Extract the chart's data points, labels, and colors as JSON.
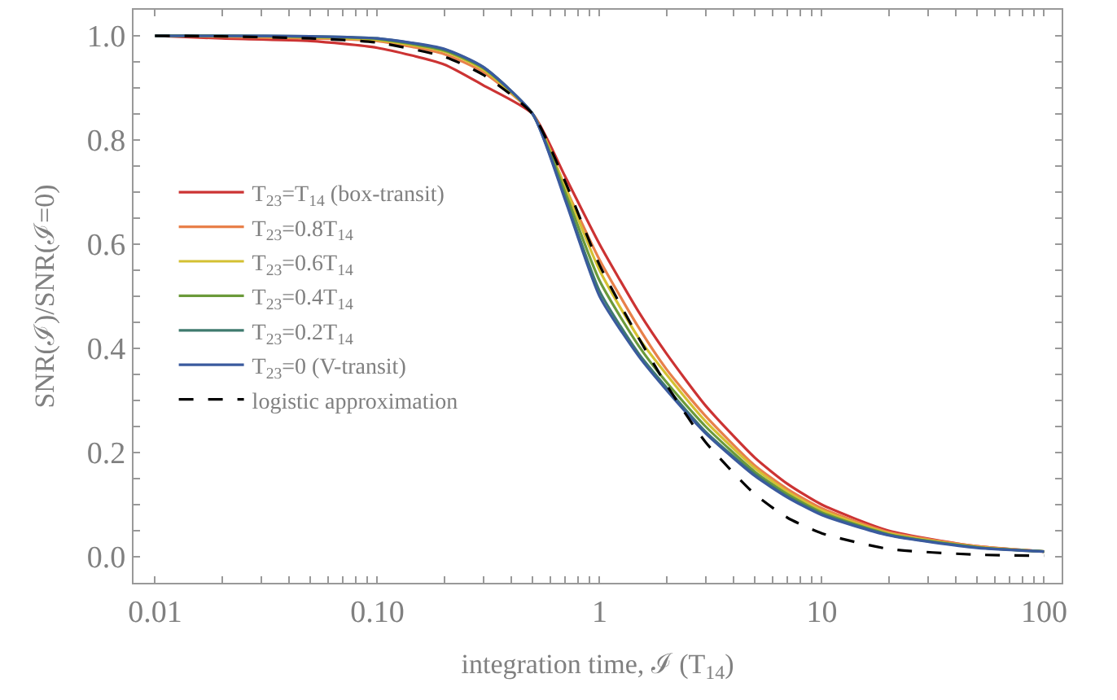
{
  "chart_data": {
    "type": "line",
    "xlabel": "integration time, ℐ (T$_{14}$)",
    "ylabel": "SNR(ℐ)/SNR(ℐ=0)",
    "x": [
      0.01,
      0.02,
      0.05,
      0.1,
      0.2,
      0.3,
      0.5,
      0.7,
      1,
      1.5,
      2,
      3,
      5,
      7,
      10,
      20,
      50,
      100
    ],
    "series": [
      {
        "name": "T$_{23}$=T$_{14}$ (box-transit)",
        "color": "#cc3333",
        "values": [
          1.0,
          0.995,
          0.99,
          0.977,
          0.945,
          0.905,
          0.85,
          0.73,
          0.6,
          0.47,
          0.39,
          0.29,
          0.19,
          0.14,
          0.1,
          0.05,
          0.02,
          0.01
        ]
      },
      {
        "name": "T$_{23}$=0.8T$_{14}$",
        "color": "#e8804a",
        "values": [
          1.0,
          0.998,
          0.995,
          0.99,
          0.965,
          0.93,
          0.85,
          0.71,
          0.57,
          0.44,
          0.36,
          0.27,
          0.175,
          0.13,
          0.093,
          0.047,
          0.02,
          0.01
        ]
      },
      {
        "name": "T$_{23}$=0.6T$_{14}$",
        "color": "#d4c032",
        "values": [
          1.0,
          1.0,
          0.997,
          0.992,
          0.97,
          0.935,
          0.85,
          0.71,
          0.55,
          0.42,
          0.35,
          0.26,
          0.17,
          0.125,
          0.089,
          0.045,
          0.019,
          0.01
        ]
      },
      {
        "name": "T$_{23}$=0.4T$_{14}$",
        "color": "#6b9a3a",
        "values": [
          1.0,
          1.0,
          0.998,
          0.994,
          0.972,
          0.938,
          0.85,
          0.7,
          0.53,
          0.405,
          0.335,
          0.25,
          0.163,
          0.12,
          0.085,
          0.043,
          0.018,
          0.01
        ]
      },
      {
        "name": "T$_{23}$=0.2T$_{14}$",
        "color": "#3f7a6e",
        "values": [
          1.0,
          1.0,
          0.999,
          0.995,
          0.974,
          0.94,
          0.85,
          0.69,
          0.51,
          0.39,
          0.325,
          0.24,
          0.158,
          0.116,
          0.082,
          0.042,
          0.018,
          0.01
        ]
      },
      {
        "name": "T$_{23}$=0 (V-transit)",
        "color": "#3a5a9e",
        "values": [
          1.0,
          1.0,
          0.999,
          0.995,
          0.975,
          0.94,
          0.85,
          0.685,
          0.5,
          0.385,
          0.32,
          0.237,
          0.155,
          0.114,
          0.08,
          0.041,
          0.017,
          0.01
        ]
      },
      {
        "name": "logistic approximation",
        "color": "#000000",
        "line_style": "dashed",
        "values": [
          1.0,
          0.999,
          0.995,
          0.987,
          0.96,
          0.925,
          0.85,
          0.72,
          0.56,
          0.42,
          0.33,
          0.22,
          0.12,
          0.075,
          0.045,
          0.015,
          0.004,
          0.002
        ]
      }
    ],
    "log": "x",
    "xlim": [
      0.008,
      120
    ],
    "ylim": [
      -0.05,
      1.05
    ],
    "xticks": [
      0.01,
      {
        "value": 0.02,
        "label": null
      },
      {
        "value": 0.03,
        "label": null
      },
      {
        "value": 0.04,
        "label": null
      },
      {
        "value": 0.05,
        "label": null
      },
      {
        "value": 0.06,
        "label": null
      },
      {
        "value": 0.07,
        "label": null
      },
      {
        "value": 0.08,
        "label": null
      },
      {
        "value": 0.09,
        "label": null
      },
      {
        "value": 0.1,
        "label": "0.10"
      },
      {
        "value": 0.2,
        "label": null
      },
      {
        "value": 0.3,
        "label": null
      },
      {
        "value": 0.4,
        "label": null
      },
      {
        "value": 0.5,
        "label": null
      },
      {
        "value": 0.6,
        "label": null
      },
      {
        "value": 0.7,
        "label": null
      },
      {
        "value": 0.8,
        "label": null
      },
      {
        "value": 0.9,
        "label": null
      },
      1,
      {
        "value": 2,
        "label": null
      },
      {
        "value": 3,
        "label": null
      },
      {
        "value": 4,
        "label": null
      },
      {
        "value": 5,
        "label": null
      },
      {
        "value": 6,
        "label": null
      },
      {
        "value": 7,
        "label": null
      },
      {
        "value": 8,
        "label": null
      },
      {
        "value": 9,
        "label": null
      },
      10,
      {
        "value": 20,
        "label": null
      },
      {
        "value": 30,
        "label": null
      },
      {
        "value": 40,
        "label": null
      },
      {
        "value": 50,
        "label": null
      },
      {
        "value": 60,
        "label": null
      },
      {
        "value": 70,
        "label": null
      },
      {
        "value": 80,
        "label": null
      },
      {
        "value": 90,
        "label": null
      },
      100
    ],
    "yticks": [
      {
        "value": 0,
        "label": "0.0"
      },
      {
        "value": 0.05,
        "label": null
      },
      {
        "value": 0.1,
        "label": null
      },
      {
        "value": 0.15,
        "label": null
      },
      0.2,
      {
        "value": 0.25,
        "label": null
      },
      {
        "value": 0.3,
        "label": null
      },
      {
        "value": 0.35,
        "label": null
      },
      0.4,
      {
        "value": 0.45,
        "label": null
      },
      {
        "value": 0.5,
        "label": null
      },
      {
        "value": 0.55,
        "label": null
      },
      0.6,
      {
        "value": 0.65,
        "label": null
      },
      {
        "value": 0.7,
        "label": null
      },
      {
        "value": 0.75,
        "label": null
      },
      0.8,
      {
        "value": 0.85,
        "label": null
      },
      {
        "value": 0.9,
        "label": null
      },
      {
        "value": 0.95,
        "label": null
      },
      {
        "value": 1,
        "label": "1.0"
      }
    ],
    "legend": "left",
    "line_style": "solid"
  }
}
